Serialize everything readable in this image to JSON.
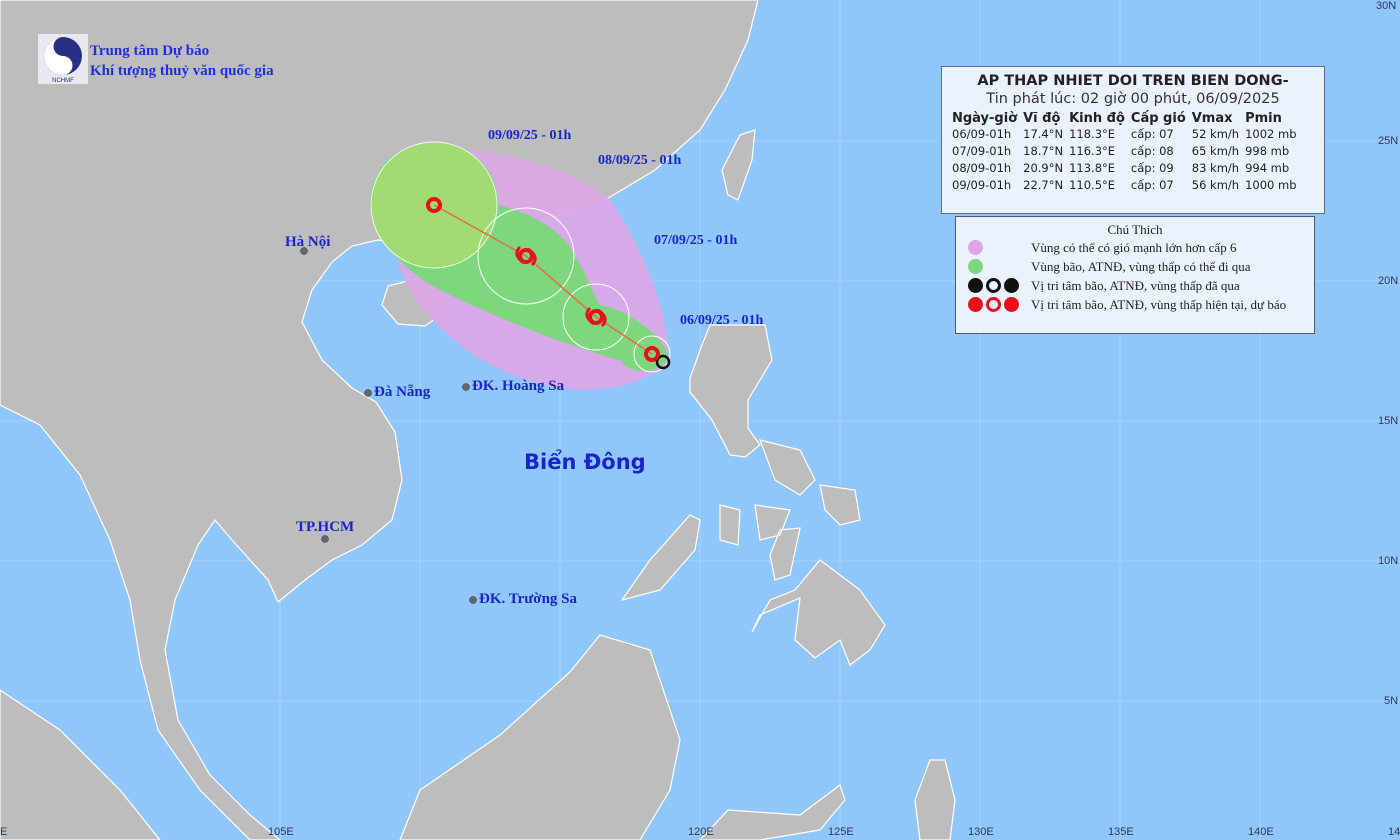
{
  "header": {
    "org_line1": "Trung tâm Dự báo",
    "org_line2": "Khí tượng thuỷ văn quốc gia",
    "logo_text": "NCHMF"
  },
  "info_box": {
    "title": "AP THAP NHIET DOI TREN BIEN DONG-",
    "issued": "Tin phát lúc: 02 giờ 00 phút, 06/09/2025",
    "columns": [
      "Ngày-giờ",
      "Vĩ độ",
      "Kinh độ",
      "Cấp gió",
      "Vmax",
      "Pmin"
    ],
    "rows": [
      [
        "06/09-01h",
        "17.4°N",
        "118.3°E",
        "cấp: 07",
        "52 km/h",
        "1002 mb"
      ],
      [
        "07/09-01h",
        "18.7°N",
        "116.3°E",
        "cấp: 08",
        "65 km/h",
        "998 mb"
      ],
      [
        "08/09-01h",
        "20.9°N",
        "113.8°E",
        "cấp: 09",
        "83 km/h",
        "994 mb"
      ],
      [
        "09/09-01h",
        "22.7°N",
        "110.5°E",
        "cấp: 07",
        "56 km/h",
        "1000 mb"
      ]
    ]
  },
  "legend": {
    "title": "Chú Thich",
    "items": [
      {
        "label": "Vùng có thể có gió mạnh lớn hơn cấp 6",
        "color": "#dca6e6"
      },
      {
        "label": "Vùng bão, ATNĐ, vùng thấp có thể đi qua",
        "color": "#7ed67e"
      },
      {
        "label": "Vị tri tâm bão, ATNĐ, vùng thấp đã qua",
        "color": "#111111"
      },
      {
        "label": "Vị tri tâm bão, ATNĐ, vùng thấp hiện tại, dự báo",
        "color": "#e8101a"
      }
    ]
  },
  "track_labels": [
    "06/09/25 - 01h",
    "07/09/25 - 01h",
    "08/09/25 - 01h",
    "09/09/25 - 01h"
  ],
  "places": {
    "hanoi": "Hà Nội",
    "danang": "Đà Nẵng",
    "hoangsa": "ĐK. Hoàng Sa",
    "hcm": "TP.HCM",
    "truongsa": "ĐK. Trường Sa",
    "sea": "Biển Đông"
  },
  "axes": {
    "lon_labels": [
      "E",
      "105E",
      "120E",
      "125E",
      "130E",
      "135E",
      "140E",
      "14"
    ],
    "lat_labels": [
      "30N",
      "25N",
      "20N",
      "15N",
      "10N",
      "5N"
    ]
  },
  "colors": {
    "sea": "#8fc6fc",
    "land": "#bdbdbd",
    "wind_zone": "#dca6e6",
    "storm_zone": "#7ed67e",
    "current": "#e8101a"
  }
}
